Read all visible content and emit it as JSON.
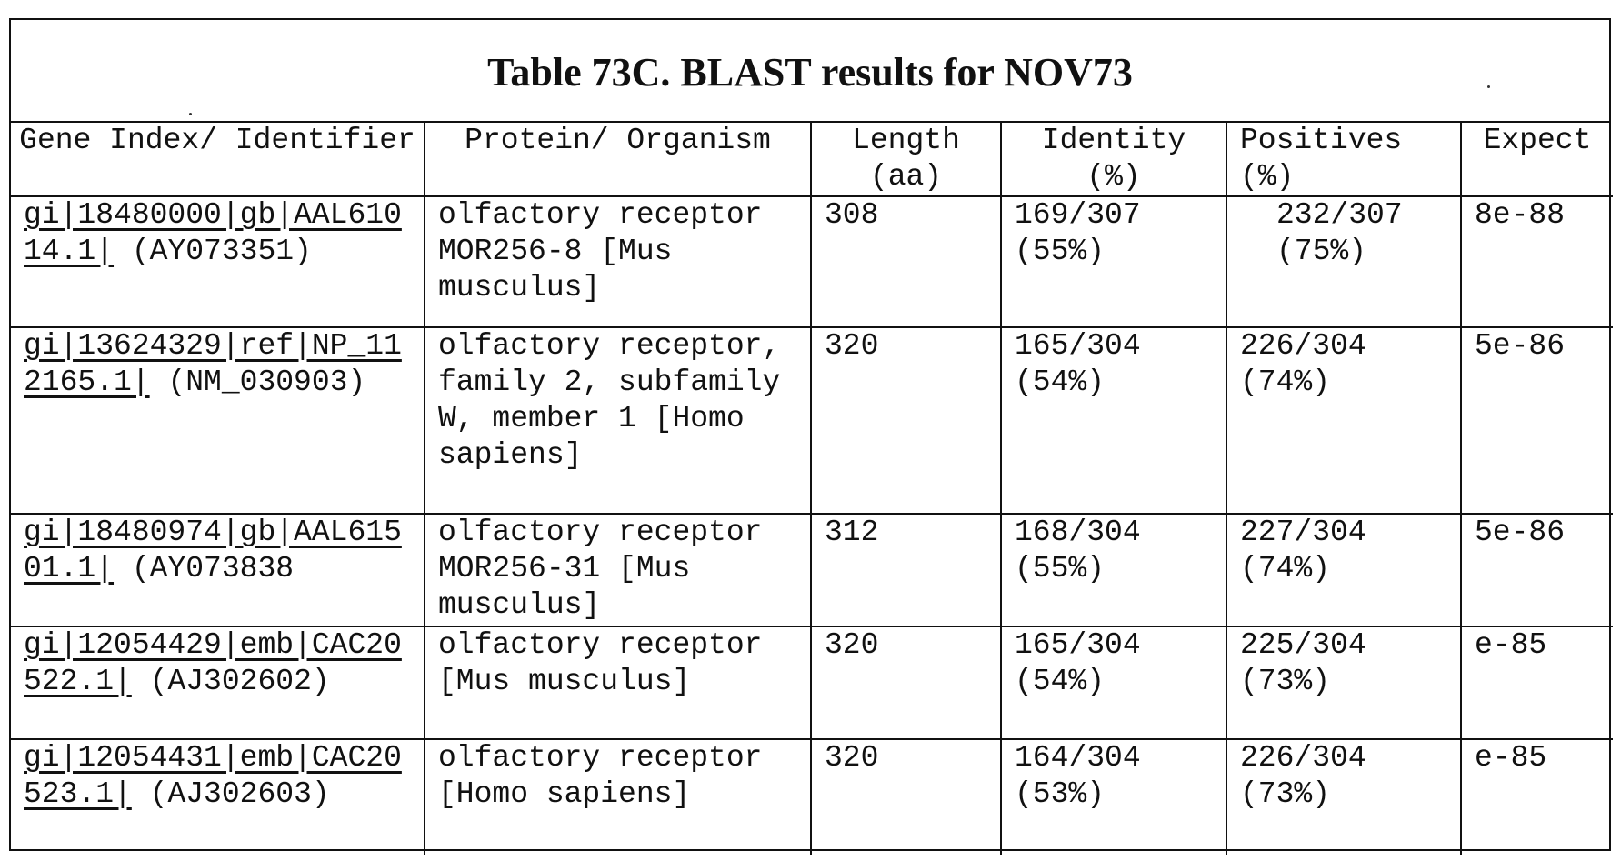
{
  "title": "Table 73C. BLAST results for NOV73",
  "columns": [
    "Gene Index/ Identifier",
    "Protein/ Organism",
    "Length (aa)",
    "Identity (%)",
    "Positives (%)",
    "Expect"
  ],
  "rows": [
    {
      "gene_link": "gi|18480000|gb|AAL61014.1|",
      "gene_acc": "(AY073351)",
      "protein": "olfactory receptor MOR256-8 [Mus musculus]",
      "length": "308",
      "identity": "169/307 (55%)",
      "positives": "232/307 (75%)",
      "expect": "8e-88"
    },
    {
      "gene_link": "gi|13624329|ref|NP_112165.1|",
      "gene_acc": "(NM_030903)",
      "protein": "olfactory receptor, family 2, subfamily W, member 1 [Homo sapiens]",
      "length": "320",
      "identity": "165/304 (54%)",
      "positives": "226/304 (74%)",
      "expect": "5e-86"
    },
    {
      "gene_link": "gi|18480974|gb|AAL61501.1|",
      "gene_acc": "(AY073838",
      "protein": "olfactory receptor MOR256-31 [Mus musculus]",
      "length": "312",
      "identity": "168/304 (55%)",
      "positives": "227/304 (74%)",
      "expect": "5e-86"
    },
    {
      "gene_link": "gi|12054429|emb|CAC20522.1|",
      "gene_acc": "(AJ302602)",
      "protein": "olfactory receptor [Mus musculus]",
      "length": "320",
      "identity": "165/304 (54%)",
      "positives": "225/304 (73%)",
      "expect": "e-85"
    },
    {
      "gene_link": "gi|12054431|emb|CAC20523.1|",
      "gene_acc": "(AJ302603)",
      "protein": "olfactory receptor [Homo sapiens]",
      "length": "320",
      "identity": "164/304 (53%)",
      "positives": "226/304 (73%)",
      "expect": "e-85"
    }
  ]
}
